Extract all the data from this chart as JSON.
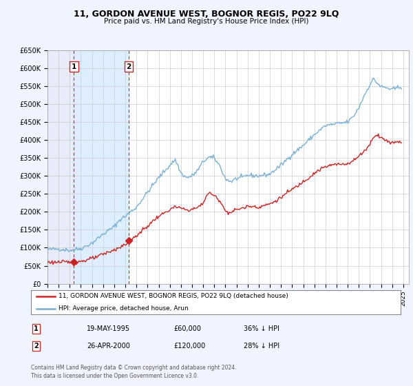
{
  "title": "11, GORDON AVENUE WEST, BOGNOR REGIS, PO22 9LQ",
  "subtitle": "Price paid vs. HM Land Registry's House Price Index (HPI)",
  "ylim": [
    0,
    650000
  ],
  "xlim_start": 1993.0,
  "xlim_end": 2025.5,
  "yticks": [
    0,
    50000,
    100000,
    150000,
    200000,
    250000,
    300000,
    350000,
    400000,
    450000,
    500000,
    550000,
    600000,
    650000
  ],
  "ytick_labels": [
    "£0",
    "£50K",
    "£100K",
    "£150K",
    "£200K",
    "£250K",
    "£300K",
    "£350K",
    "£400K",
    "£450K",
    "£500K",
    "£550K",
    "£600K",
    "£650K"
  ],
  "xticks": [
    1993,
    1994,
    1995,
    1996,
    1997,
    1998,
    1999,
    2000,
    2001,
    2002,
    2003,
    2004,
    2005,
    2006,
    2007,
    2008,
    2009,
    2010,
    2011,
    2012,
    2013,
    2014,
    2015,
    2016,
    2017,
    2018,
    2019,
    2020,
    2021,
    2022,
    2023,
    2024,
    2025
  ],
  "background_color": "#f0f4ff",
  "plot_background": "#ffffff",
  "hatch_color": "#d8d8e8",
  "grid_color": "#cccccc",
  "hpi_color": "#7ab0d4",
  "price_color": "#cc2222",
  "sale1_date": 1995.37,
  "sale1_price": 60000,
  "sale2_date": 2000.32,
  "sale2_price": 120000,
  "shade_color": "#ddeeff",
  "legend_label_red": "11, GORDON AVENUE WEST, BOGNOR REGIS, PO22 9LQ (detached house)",
  "legend_label_blue": "HPI: Average price, detached house, Arun",
  "table_row1": [
    "1",
    "19-MAY-1995",
    "£60,000",
    "36% ↓ HPI"
  ],
  "table_row2": [
    "2",
    "26-APR-2000",
    "£120,000",
    "28% ↓ HPI"
  ],
  "footer": "Contains HM Land Registry data © Crown copyright and database right 2024.\nThis data is licensed under the Open Government Licence v3.0."
}
